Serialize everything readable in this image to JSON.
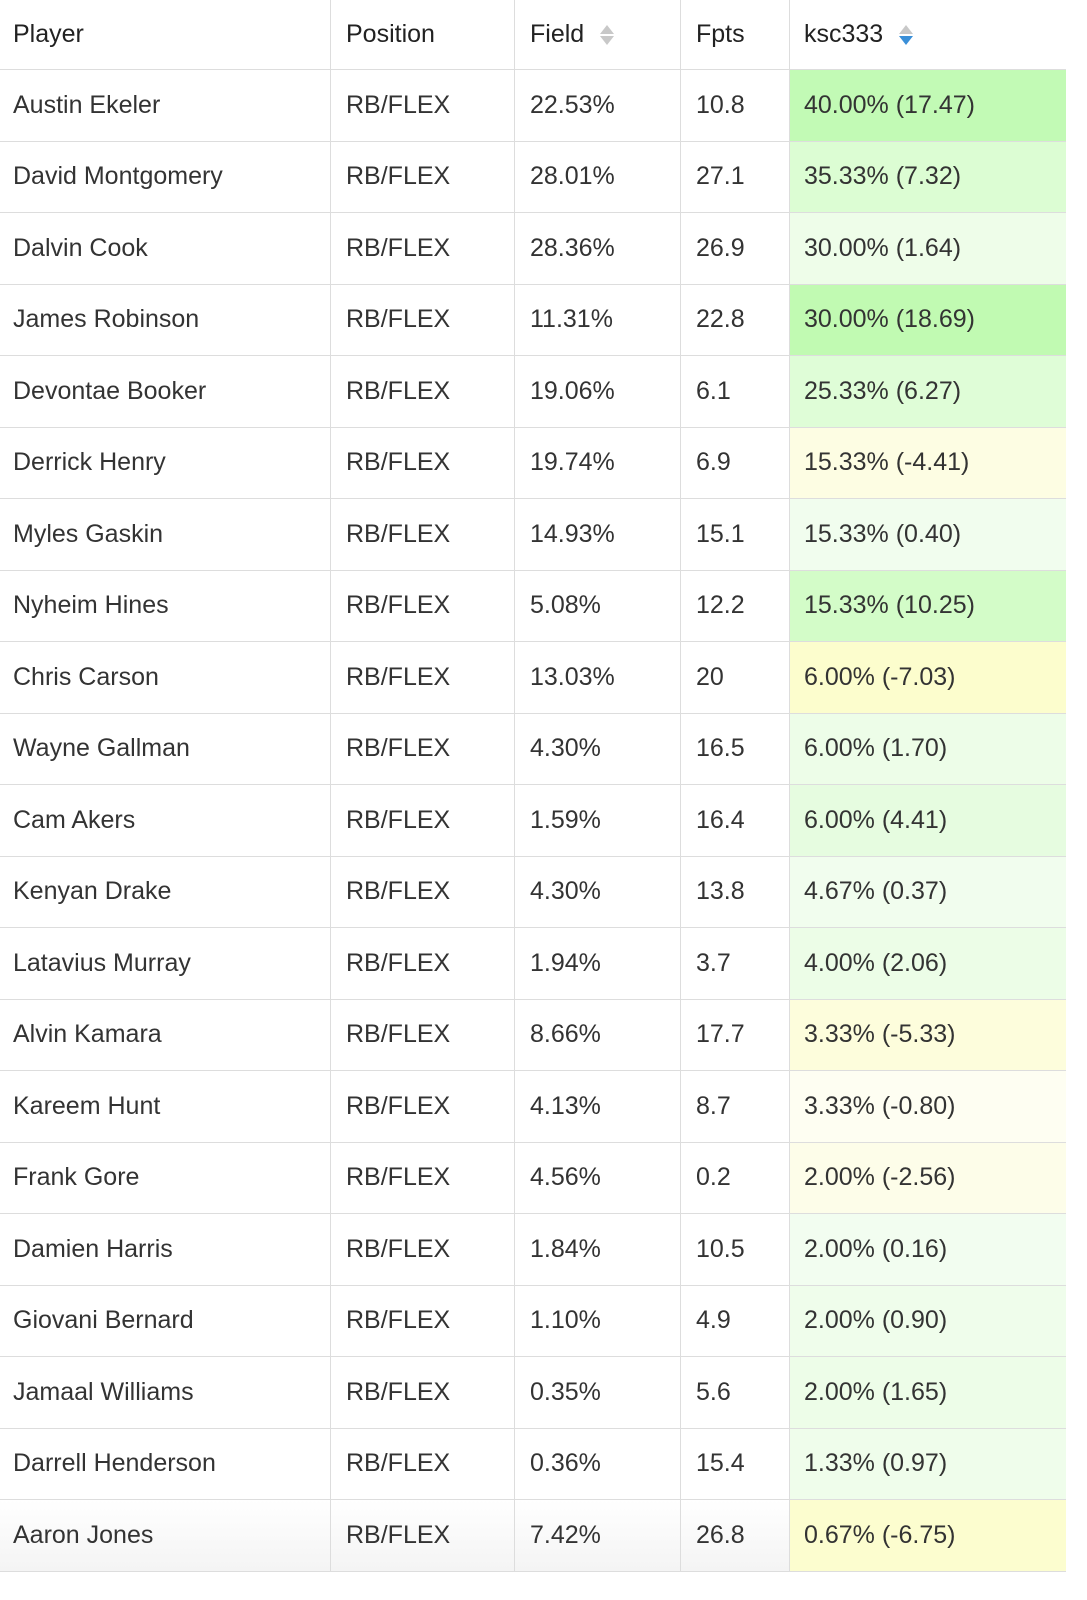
{
  "table": {
    "columns": [
      {
        "label": "Player"
      },
      {
        "label": "Position"
      },
      {
        "label": "Field",
        "sort_icon": "sort-both-icon"
      },
      {
        "label": "Fpts"
      },
      {
        "label": "ksc333",
        "sort_icon": "sort-desc-icon",
        "sort_state": "descending"
      }
    ],
    "rows": [
      {
        "player": "Austin Ekeler",
        "position": "RB/FLEX",
        "field": "22.53%",
        "fpts": "10.8",
        "own": "40.00% (17.47)",
        "color": "#c2fab5"
      },
      {
        "player": "David Montgomery",
        "position": "RB/FLEX",
        "field": "28.01%",
        "fpts": "27.1",
        "own": "35.33% (7.32)",
        "color": "#dcfdd3"
      },
      {
        "player": "Dalvin Cook",
        "position": "RB/FLEX",
        "field": "28.36%",
        "fpts": "26.9",
        "own": "30.00% (1.64)",
        "color": "#eefde9"
      },
      {
        "player": "James Robinson",
        "position": "RB/FLEX",
        "field": "11.31%",
        "fpts": "22.8",
        "own": "30.00% (18.69)",
        "color": "#c1fab2"
      },
      {
        "player": "Devontae Booker",
        "position": "RB/FLEX",
        "field": "19.06%",
        "fpts": "6.1",
        "own": "25.33% (6.27)",
        "color": "#dffdd7"
      },
      {
        "player": "Derrick Henry",
        "position": "RB/FLEX",
        "field": "19.74%",
        "fpts": "6.9",
        "own": "15.33% (-4.41)",
        "color": "#fdfde3"
      },
      {
        "player": "Myles Gaskin",
        "position": "RB/FLEX",
        "field": "14.93%",
        "fpts": "15.1",
        "own": "15.33% (0.40)",
        "color": "#f1fdee"
      },
      {
        "player": "Nyheim Hines",
        "position": "RB/FLEX",
        "field": "5.08%",
        "fpts": "12.2",
        "own": "15.33% (10.25)",
        "color": "#d3fcc8"
      },
      {
        "player": "Chris Carson",
        "position": "RB/FLEX",
        "field": "13.03%",
        "fpts": "20",
        "own": "6.00% (-7.03)",
        "color": "#fcfdcd"
      },
      {
        "player": "Wayne Gallman",
        "position": "RB/FLEX",
        "field": "4.30%",
        "fpts": "16.5",
        "own": "6.00% (1.70)",
        "color": "#edfde8"
      },
      {
        "player": "Cam Akers",
        "position": "RB/FLEX",
        "field": "1.59%",
        "fpts": "16.4",
        "own": "6.00% (4.41)",
        "color": "#e6fce0"
      },
      {
        "player": "Kenyan Drake",
        "position": "RB/FLEX",
        "field": "4.30%",
        "fpts": "13.8",
        "own": "4.67% (0.37)",
        "color": "#f1fdee"
      },
      {
        "player": "Latavius Murray",
        "position": "RB/FLEX",
        "field": "1.94%",
        "fpts": "3.7",
        "own": "4.00% (2.06)",
        "color": "#ecfde7"
      },
      {
        "player": "Alvin Kamara",
        "position": "RB/FLEX",
        "field": "8.66%",
        "fpts": "17.7",
        "own": "3.33% (-5.33)",
        "color": "#fdfddc"
      },
      {
        "player": "Kareem Hunt",
        "position": "RB/FLEX",
        "field": "4.13%",
        "fpts": "8.7",
        "own": "3.33% (-0.80)",
        "color": "#fefef2"
      },
      {
        "player": "Frank Gore",
        "position": "RB/FLEX",
        "field": "4.56%",
        "fpts": "0.2",
        "own": "2.00% (-2.56)",
        "color": "#fdfde9"
      },
      {
        "player": "Damien Harris",
        "position": "RB/FLEX",
        "field": "1.84%",
        "fpts": "10.5",
        "own": "2.00% (0.16)",
        "color": "#f2fdf0"
      },
      {
        "player": "Giovani Bernard",
        "position": "RB/FLEX",
        "field": "1.10%",
        "fpts": "4.9",
        "own": "2.00% (0.90)",
        "color": "#effdeb"
      },
      {
        "player": "Jamaal Williams",
        "position": "RB/FLEX",
        "field": "0.35%",
        "fpts": "5.6",
        "own": "2.00% (1.65)",
        "color": "#edfde8"
      },
      {
        "player": "Darrell Henderson",
        "position": "RB/FLEX",
        "field": "0.36%",
        "fpts": "15.4",
        "own": "1.33% (0.97)",
        "color": "#effdeb"
      },
      {
        "player": "Aaron Jones",
        "position": "RB/FLEX",
        "field": "7.42%",
        "fpts": "26.8",
        "own": "0.67% (-6.75)",
        "color": "#fcfdcf"
      }
    ]
  }
}
